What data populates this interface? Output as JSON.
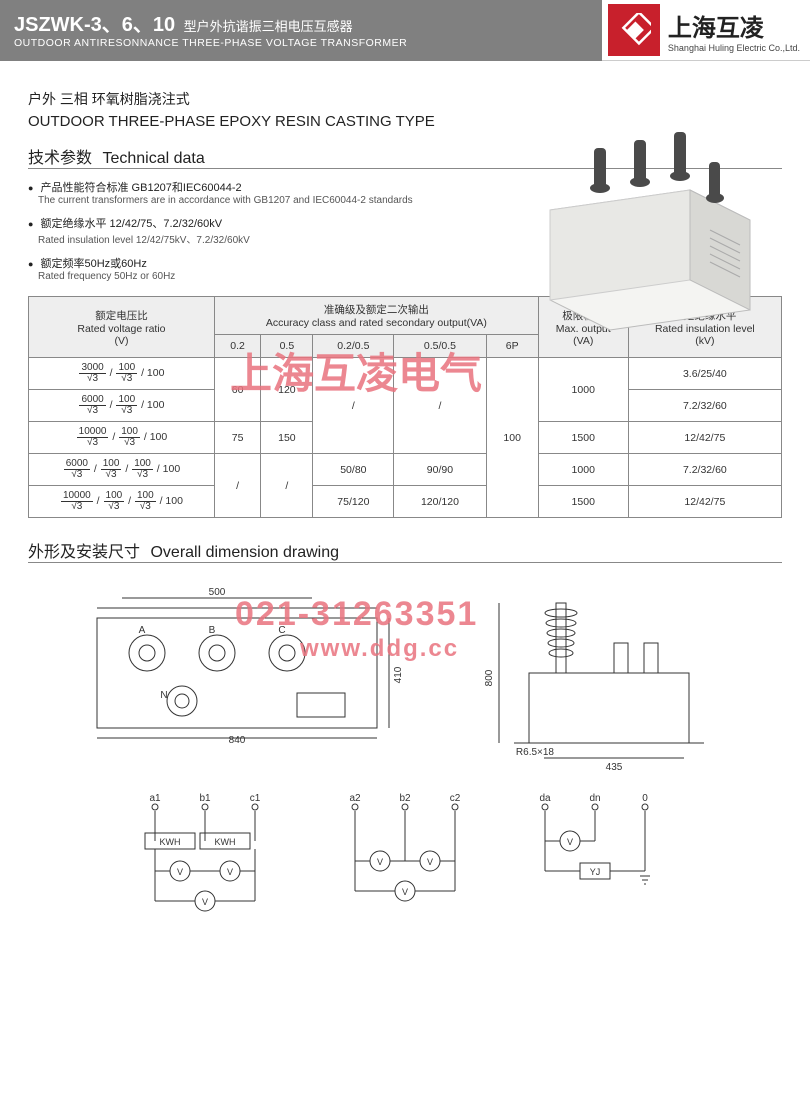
{
  "header": {
    "model": "JSZWK-3、6、10",
    "model_suffix_cn": "型户外抗谐振三相电压互感器",
    "subtitle_en": "OUTDOOR ANTIRESONNANCE THREE-PHASE VOLTAGE TRANSFORMER",
    "brand_cn": "上海互凌",
    "brand_en": "Shanghai Huling Electric Co.,Ltd."
  },
  "type_line_cn": "户外 三相  环氧树脂浇注式",
  "type_line_en": "OUTDOOR THREE-PHASE EPOXY RESIN CASTING TYPE",
  "tech_heading_cn": "技术参数",
  "tech_heading_en": "Technical data",
  "bullets": [
    {
      "cn": "产品性能符合标准 GB1207和IEC60044-2",
      "en": "The current transformers are in accordance with GB1207 and IEC60044-2 standards"
    },
    {
      "cn": "额定绝缘水平 12/42/75、7.2/32/60kV",
      "en": "Rated insulation level 12/42/75kV、7.2/32/60kV"
    },
    {
      "cn": "额定频率50Hz或60Hz",
      "en": "Rated frequency 50Hz or 60Hz"
    }
  ],
  "table": {
    "head": {
      "col_ratio_cn": "额定电压比",
      "col_ratio_en": "Rated voltage ratio",
      "col_ratio_unit": "(V)",
      "col_acc_cn": "准确级及额定二次输出",
      "col_acc_en": "Accuracy class and rated secondary output(VA)",
      "acc_cols": [
        "0.2",
        "0.5",
        "0.2/0.5",
        "0.5/0.5",
        "6P"
      ],
      "col_max_cn": "极限输出",
      "col_max_en": "Max. output",
      "col_max_unit": "(VA)",
      "col_ins_cn": "额定绝缘水平",
      "col_ins_en": "Rated insulation level",
      "col_ins_unit": "(kV)"
    },
    "rows": [
      {
        "ratio": [
          [
            "3000",
            "√3"
          ],
          [
            "100",
            "√3"
          ],
          [
            "100",
            null
          ]
        ],
        "v02": "60",
        "v05": "120",
        "v0205": "/",
        "v0505": "/",
        "v6p": "100",
        "max": "1000",
        "ins": "3.6/25/40"
      },
      {
        "ratio": [
          [
            "6000",
            "√3"
          ],
          [
            "100",
            "√3"
          ],
          [
            "100",
            null
          ]
        ],
        "max": "",
        "ins": "7.2/32/60"
      },
      {
        "ratio": [
          [
            "10000",
            "√3"
          ],
          [
            "100",
            "√3"
          ],
          [
            "100",
            null
          ]
        ],
        "v02": "75",
        "v05": "150",
        "max": "1500",
        "ins": "12/42/75"
      },
      {
        "ratio": [
          [
            "6000",
            "√3"
          ],
          [
            "100",
            "√3"
          ],
          [
            "100",
            "√3"
          ],
          [
            "100",
            null
          ]
        ],
        "v02": "/",
        "v05": "/",
        "v0205": "50/80",
        "v0505": "90/90",
        "max": "1000",
        "ins": "7.2/32/60"
      },
      {
        "ratio": [
          [
            "10000",
            "√3"
          ],
          [
            "100",
            "√3"
          ],
          [
            "100",
            "√3"
          ],
          [
            "100",
            null
          ]
        ],
        "v0205": "75/120",
        "v0505": "120/120",
        "max": "1500",
        "ins": "12/42/75"
      }
    ]
  },
  "dim_heading_cn": "外形及安装尺寸",
  "dim_heading_en": "Overall dimension drawing",
  "dims": {
    "top_width": "500",
    "full_width": "840",
    "height": "410",
    "side_height": "800",
    "side_width": "435",
    "slot": "R6.5×18",
    "terminals": [
      "A",
      "B",
      "C",
      "N"
    ],
    "wiring_top1": [
      "a1",
      "b1",
      "c1"
    ],
    "wiring_top2": [
      "a2",
      "b2",
      "c2"
    ],
    "wiring_top3": [
      "da",
      "dn",
      "0"
    ]
  },
  "watermarks": {
    "w1": "上海互凌电气",
    "w2": "021-31263351",
    "w3": "www.ddg.cc"
  },
  "colors": {
    "header_bg": "#808080",
    "brand_red": "#c8202c",
    "watermark": "#e9737e",
    "table_header": "#eeeeee",
    "border": "#888888"
  }
}
